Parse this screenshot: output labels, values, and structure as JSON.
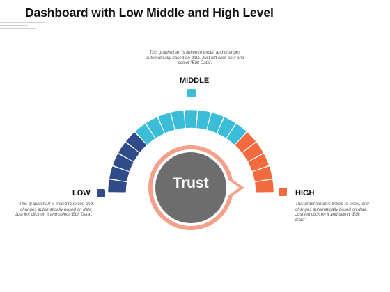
{
  "title": "Dashboard with Low Middle and High Level",
  "center": {
    "label": "Trust"
  },
  "levels": {
    "middle": {
      "label": "MIDDLE",
      "description": "This graph/chart is linked to excel, and changes automatically based on data. Just left click on it and select “Edit Data”."
    },
    "low": {
      "label": "LOW",
      "description": "This graph/chart is linked to excel, and changes automatically based on data. Just left click on it and select “Edit Data”."
    },
    "high": {
      "label": "HIGH",
      "description": "This graph/chart is linked to excel, and changes automatically based on data. Just left click on it and select “Edit Data”."
    }
  },
  "colors": {
    "low": "#2f4b8a",
    "middle": "#3bbcd8",
    "high": "#f36a3f",
    "ring": "#f4a08a",
    "center": "#6d6d6d"
  },
  "gauge": {
    "segments": [
      "low",
      "low",
      "low",
      "low",
      "low",
      "middle",
      "middle",
      "middle",
      "middle",
      "middle",
      "middle",
      "middle",
      "middle",
      "middle",
      "high",
      "high",
      "high",
      "high",
      "high"
    ]
  }
}
